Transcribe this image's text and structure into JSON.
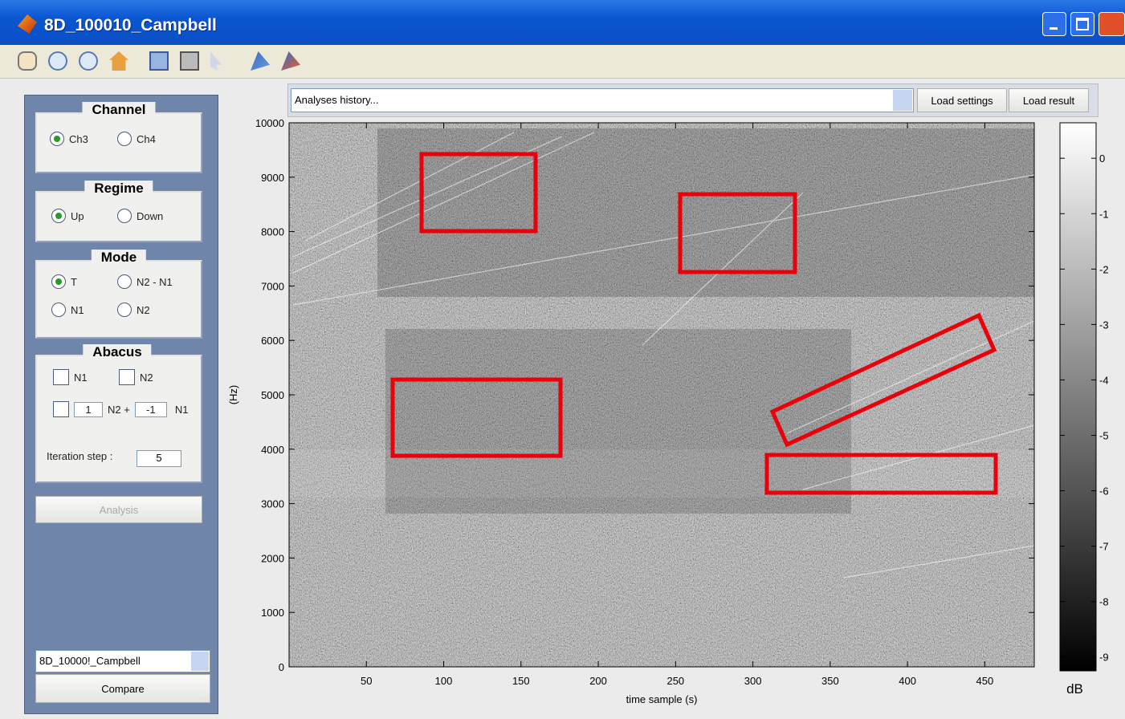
{
  "window": {
    "title": "8D_100010_Campbell"
  },
  "panels": {
    "channel": {
      "title": "Channel",
      "options": [
        {
          "label": "Ch3",
          "checked": true
        },
        {
          "label": "Ch4",
          "checked": false
        }
      ]
    },
    "regime": {
      "title": "Regime",
      "options": [
        {
          "label": "Up",
          "checked": true
        },
        {
          "label": "Down",
          "checked": false
        }
      ]
    },
    "mode": {
      "title": "Mode",
      "options": [
        {
          "label": "T",
          "checked": true
        },
        {
          "label": "N2 - N1",
          "checked": false
        },
        {
          "label": "N1",
          "checked": false
        },
        {
          "label": "N2",
          "checked": false
        }
      ]
    },
    "abacus": {
      "title": "Abacus",
      "checkboxes": [
        {
          "label": "N1",
          "checked": false
        },
        {
          "label": "N2",
          "checked": false
        }
      ],
      "combo": {
        "checked": false,
        "n2_coef": "1",
        "n2_label": "N2 +",
        "n1_coef": "-1",
        "n1_label": "N1"
      },
      "iteration_label": "Iteration step :",
      "iteration_value": "5"
    },
    "analysis_button": "Analysis",
    "compare_select": "8D_10000!_Campbell",
    "compare_button": "Compare"
  },
  "history": {
    "placeholder": "Analyses history...",
    "load_settings": "Load settings",
    "load_result": "Load result"
  },
  "plot": {
    "x_label": "time sample (s)",
    "y_label": "(Hz)",
    "xlim": [
      0,
      482
    ],
    "ylim": [
      0,
      10000
    ],
    "xticks": [
      50,
      100,
      150,
      200,
      250,
      300,
      350,
      400,
      450
    ],
    "yticks": [
      0,
      1000,
      2000,
      3000,
      4000,
      5000,
      6000,
      7000,
      8000,
      9000,
      10000
    ],
    "colorbar": {
      "label": "dB",
      "lim": [
        -9.25,
        0.64
      ],
      "ticks": [
        0,
        -1,
        -2,
        -3,
        -4,
        -5,
        -6,
        -7,
        -8,
        -9
      ]
    }
  }
}
